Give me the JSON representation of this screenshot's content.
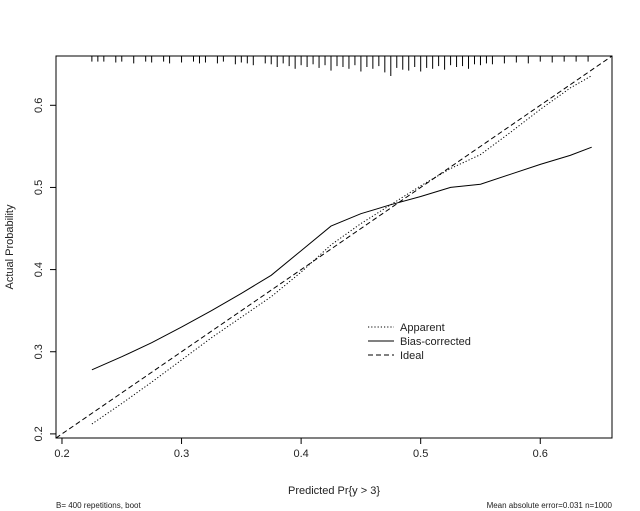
{
  "chart_data": {
    "type": "line",
    "title": "",
    "xlabel": "Predicted Pr{y > 3}",
    "ylabel": "Actual Probability",
    "xlim": [
      0.195,
      0.66
    ],
    "ylim": [
      0.195,
      0.66
    ],
    "x_ticks": [
      0.2,
      0.3,
      0.4,
      0.5,
      0.6
    ],
    "y_ticks": [
      0.2,
      0.3,
      0.4,
      0.5,
      0.6
    ],
    "x_tick_labels": [
      "0.2",
      "0.3",
      "0.4",
      "0.5",
      "0.6"
    ],
    "y_tick_labels": [
      "0.2",
      "0.3",
      "0.4",
      "0.5",
      "0.6"
    ],
    "grid": false,
    "legend_position": "center-right",
    "series": [
      {
        "name": "Apparent",
        "style": "dotted",
        "x": [
          0.225,
          0.25,
          0.275,
          0.3,
          0.325,
          0.35,
          0.375,
          0.4,
          0.425,
          0.45,
          0.475,
          0.5,
          0.525,
          0.55,
          0.575,
          0.6,
          0.625,
          0.643
        ],
        "y": [
          0.212,
          0.237,
          0.263,
          0.29,
          0.317,
          0.342,
          0.367,
          0.397,
          0.43,
          0.456,
          0.479,
          0.502,
          0.523,
          0.54,
          0.567,
          0.595,
          0.621,
          0.636
        ]
      },
      {
        "name": "Bias-corrected",
        "style": "solid",
        "x": [
          0.225,
          0.25,
          0.275,
          0.3,
          0.325,
          0.35,
          0.375,
          0.4,
          0.425,
          0.45,
          0.475,
          0.5,
          0.525,
          0.55,
          0.575,
          0.6,
          0.625,
          0.643
        ],
        "y": [
          0.278,
          0.294,
          0.311,
          0.33,
          0.35,
          0.371,
          0.393,
          0.423,
          0.453,
          0.468,
          0.479,
          0.489,
          0.5,
          0.504,
          0.516,
          0.528,
          0.539,
          0.549
        ]
      },
      {
        "name": "Ideal",
        "style": "dashed",
        "x": [
          0.195,
          0.66
        ],
        "y": [
          0.195,
          0.66
        ]
      }
    ],
    "rug": {
      "x": [
        0.225,
        0.23,
        0.235,
        0.245,
        0.25,
        0.26,
        0.27,
        0.275,
        0.285,
        0.29,
        0.3,
        0.31,
        0.315,
        0.32,
        0.33,
        0.335,
        0.345,
        0.35,
        0.355,
        0.36,
        0.37,
        0.375,
        0.38,
        0.385,
        0.39,
        0.395,
        0.4,
        0.405,
        0.41,
        0.415,
        0.42,
        0.425,
        0.43,
        0.435,
        0.44,
        0.445,
        0.45,
        0.455,
        0.46,
        0.465,
        0.47,
        0.475,
        0.48,
        0.485,
        0.49,
        0.495,
        0.5,
        0.505,
        0.51,
        0.515,
        0.52,
        0.525,
        0.53,
        0.535,
        0.54,
        0.545,
        0.55,
        0.555,
        0.56,
        0.57,
        0.58,
        0.59,
        0.6,
        0.61,
        0.62,
        0.63,
        0.64
      ],
      "h": [
        0.2,
        0.2,
        0.2,
        0.25,
        0.2,
        0.3,
        0.2,
        0.25,
        0.2,
        0.3,
        0.25,
        0.2,
        0.3,
        0.25,
        0.3,
        0.2,
        0.35,
        0.25,
        0.3,
        0.4,
        0.3,
        0.35,
        0.5,
        0.3,
        0.45,
        0.6,
        0.4,
        0.5,
        0.35,
        0.55,
        0.4,
        0.7,
        0.45,
        0.5,
        0.6,
        0.4,
        0.75,
        0.5,
        0.6,
        0.45,
        0.8,
        1.0,
        0.55,
        0.65,
        0.7,
        0.5,
        0.75,
        0.55,
        0.6,
        0.45,
        0.65,
        0.4,
        0.5,
        0.45,
        0.6,
        0.35,
        0.4,
        0.3,
        0.35,
        0.3,
        0.25,
        0.3,
        0.2,
        0.25,
        0.2,
        0.2,
        0.2
      ]
    }
  },
  "legend": {
    "items": [
      {
        "label": "Apparent",
        "style": "dotted"
      },
      {
        "label": "Bias-corrected",
        "style": "solid"
      },
      {
        "label": "Ideal",
        "style": "dashed"
      }
    ]
  },
  "footer": {
    "left": "B= 400 repetitions, boot",
    "right": "Mean absolute error=0.031 n=1000"
  }
}
